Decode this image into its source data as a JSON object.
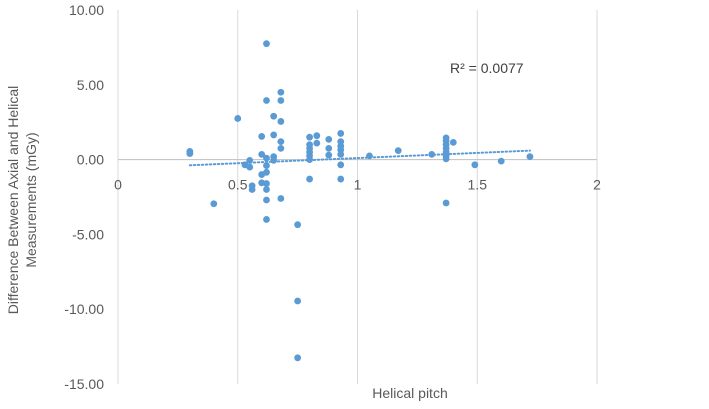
{
  "chart_data": {
    "type": "scatter",
    "title": "",
    "xlabel": "Helical pitch",
    "ylabel_lines": [
      "Difference Between Axial and Helical",
      "Measurements (mGy)"
    ],
    "xlim": [
      0,
      2
    ],
    "ylim": [
      -15,
      10
    ],
    "x_ticks": [
      {
        "value": 0,
        "label": "0"
      },
      {
        "value": 0.5,
        "label": "0.5"
      },
      {
        "value": 1,
        "label": "1"
      },
      {
        "value": 1.5,
        "label": "1.5"
      },
      {
        "value": 2,
        "label": "2"
      }
    ],
    "y_ticks": [
      {
        "value": 10,
        "label": "10.00"
      },
      {
        "value": 5,
        "label": "5.00"
      },
      {
        "value": 0,
        "label": "0.00"
      },
      {
        "value": -5,
        "label": "-5.00"
      },
      {
        "value": -10,
        "label": "-10.00"
      },
      {
        "value": -15,
        "label": "-15.00"
      }
    ],
    "grid": {
      "vertical": true,
      "horizontal": false
    },
    "marker_color": "#5b9bd5",
    "trendline": {
      "type": "linear",
      "style": "dotted",
      "color": "#5b9bd5",
      "x": [
        0.3,
        1.72
      ],
      "y": [
        -0.38,
        0.6
      ]
    },
    "annotation": "R² = 0.0077",
    "points": [
      [
        0.3,
        0.55
      ],
      [
        0.3,
        0.4
      ],
      [
        0.4,
        -2.95
      ],
      [
        0.5,
        2.75
      ],
      [
        0.53,
        -0.35
      ],
      [
        0.55,
        -0.05
      ],
      [
        0.55,
        -0.5
      ],
      [
        0.56,
        -1.75
      ],
      [
        0.56,
        -2.0
      ],
      [
        0.6,
        1.55
      ],
      [
        0.6,
        0.35
      ],
      [
        0.6,
        -1.0
      ],
      [
        0.6,
        -1.55
      ],
      [
        0.62,
        7.75
      ],
      [
        0.62,
        3.95
      ],
      [
        0.62,
        0.1
      ],
      [
        0.62,
        -0.4
      ],
      [
        0.62,
        -0.85
      ],
      [
        0.62,
        -1.6
      ],
      [
        0.62,
        -2.0
      ],
      [
        0.62,
        -2.7
      ],
      [
        0.62,
        -4.0
      ],
      [
        0.65,
        2.9
      ],
      [
        0.65,
        1.65
      ],
      [
        0.65,
        0.2
      ],
      [
        0.65,
        -0.05
      ],
      [
        0.68,
        4.5
      ],
      [
        0.68,
        3.95
      ],
      [
        0.68,
        2.55
      ],
      [
        0.68,
        1.2
      ],
      [
        0.68,
        0.75
      ],
      [
        0.68,
        -2.6
      ],
      [
        0.75,
        -4.35
      ],
      [
        0.75,
        -9.45
      ],
      [
        0.75,
        -13.25
      ],
      [
        0.8,
        1.5
      ],
      [
        0.8,
        1.0
      ],
      [
        0.8,
        0.75
      ],
      [
        0.8,
        0.5
      ],
      [
        0.8,
        0.25
      ],
      [
        0.8,
        0.0
      ],
      [
        0.8,
        -1.3
      ],
      [
        0.83,
        1.6
      ],
      [
        0.83,
        1.1
      ],
      [
        0.88,
        0.75
      ],
      [
        0.88,
        0.3
      ],
      [
        0.88,
        1.35
      ],
      [
        0.93,
        1.75
      ],
      [
        0.93,
        1.2
      ],
      [
        0.93,
        0.9
      ],
      [
        0.93,
        0.65
      ],
      [
        0.93,
        0.35
      ],
      [
        0.93,
        -0.35
      ],
      [
        0.93,
        -1.3
      ],
      [
        1.05,
        0.25
      ],
      [
        1.17,
        0.6
      ],
      [
        1.31,
        0.35
      ],
      [
        1.37,
        1.45
      ],
      [
        1.37,
        1.25
      ],
      [
        1.37,
        1.0
      ],
      [
        1.37,
        0.75
      ],
      [
        1.37,
        0.5
      ],
      [
        1.37,
        0.25
      ],
      [
        1.37,
        0.05
      ],
      [
        1.37,
        -2.9
      ],
      [
        1.4,
        1.15
      ],
      [
        1.49,
        -0.35
      ],
      [
        1.6,
        -0.1
      ],
      [
        1.72,
        0.2
      ]
    ]
  }
}
